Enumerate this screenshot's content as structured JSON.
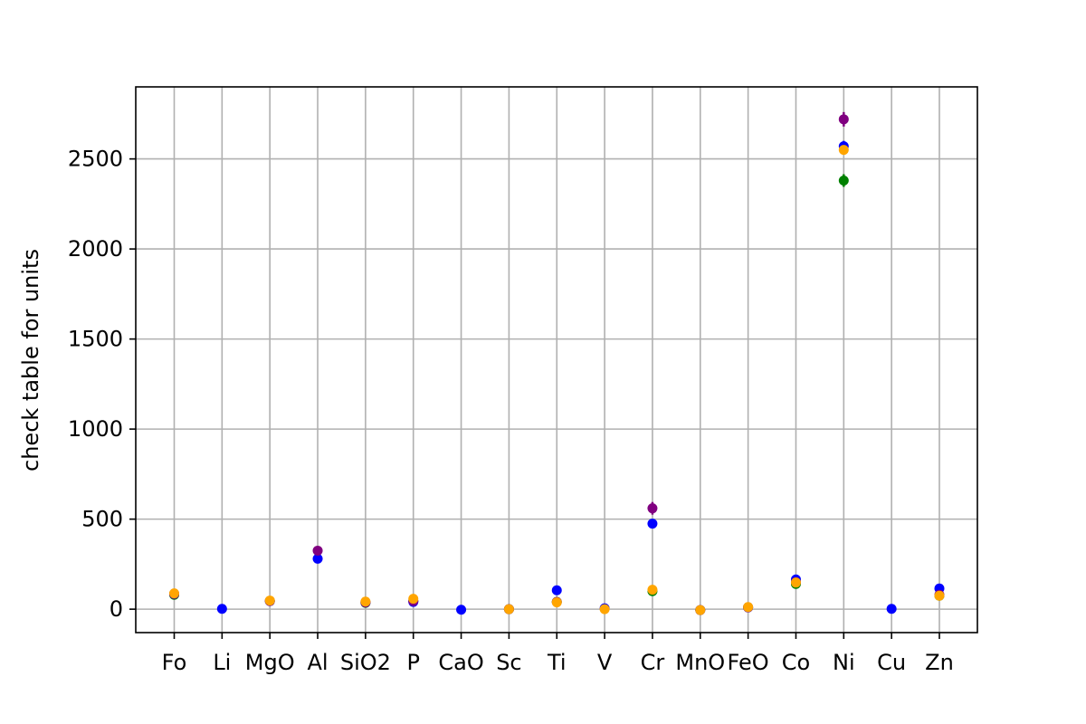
{
  "chart_data": {
    "type": "scatter",
    "title": "",
    "xlabel": "",
    "ylabel": "check table for units",
    "categories": [
      "Fo",
      "Li",
      "MgO",
      "Al",
      "SiO2",
      "P",
      "CaO",
      "Sc",
      "Ti",
      "V",
      "Cr",
      "MnO",
      "FeO",
      "Co",
      "Ni",
      "Cu",
      "Zn"
    ],
    "ylim": [
      -130,
      2900
    ],
    "yticks": [
      0,
      500,
      1000,
      1500,
      2000,
      2500
    ],
    "grid": true,
    "series": [
      {
        "color": "#008000",
        "values": [
          80,
          null,
          45,
          null,
          35,
          45,
          null,
          0,
          40,
          null,
          100,
          -5,
          10,
          140,
          2380,
          null,
          75
        ],
        "errors": [
          0,
          null,
          0,
          null,
          0,
          0,
          null,
          0,
          0,
          null,
          10,
          0,
          0,
          10,
          35,
          null,
          0
        ]
      },
      {
        "color": "#0000ff",
        "values": [
          85,
          2,
          45,
          280,
          38,
          40,
          -3,
          0,
          105,
          5,
          475,
          -5,
          10,
          165,
          2570,
          2,
          115
        ],
        "errors": [
          0,
          0,
          0,
          20,
          0,
          0,
          0,
          0,
          15,
          0,
          15,
          0,
          0,
          10,
          30,
          0,
          10
        ]
      },
      {
        "color": "#800080",
        "values": [
          85,
          null,
          45,
          325,
          38,
          45,
          null,
          0,
          40,
          null,
          560,
          -5,
          10,
          150,
          2720,
          null,
          80
        ],
        "errors": [
          0,
          null,
          0,
          0,
          0,
          0,
          null,
          0,
          0,
          null,
          35,
          0,
          0,
          0,
          40,
          null,
          0
        ]
      },
      {
        "color": "#ffa500",
        "values": [
          88,
          null,
          48,
          null,
          42,
          58,
          null,
          0,
          38,
          0,
          108,
          -5,
          12,
          148,
          2550,
          null,
          75
        ],
        "errors": [
          0,
          null,
          0,
          null,
          0,
          0,
          null,
          0,
          0,
          0,
          0,
          0,
          0,
          0,
          0,
          null,
          0
        ]
      }
    ]
  }
}
